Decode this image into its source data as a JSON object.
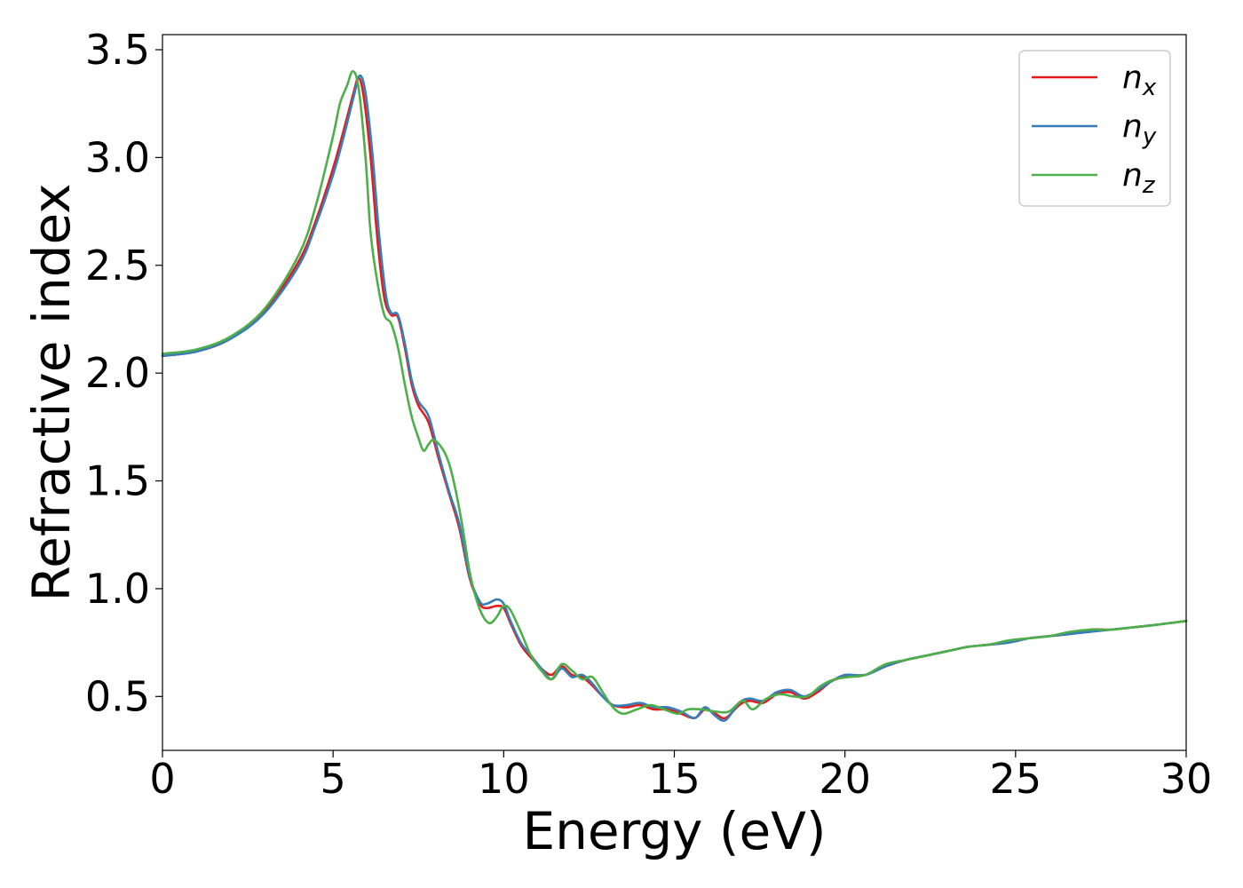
{
  "chart_data": {
    "type": "line",
    "title": "",
    "xlabel": "Energy (eV)",
    "ylabel": "Refractive index",
    "xlim": [
      0,
      30
    ],
    "ylim": [
      0.25,
      3.57
    ],
    "xticks": [
      0,
      5,
      10,
      15,
      20,
      25,
      30
    ],
    "xtick_labels": [
      "0",
      "5",
      "10",
      "15",
      "20",
      "25",
      "30"
    ],
    "yticks": [
      0.5,
      1.0,
      1.5,
      2.0,
      2.5,
      3.0,
      3.5
    ],
    "ytick_labels": [
      "0.5",
      "1.0",
      "1.5",
      "2.0",
      "2.5",
      "3.0",
      "3.5"
    ],
    "grid": false,
    "legend_position": "top-right",
    "series": [
      {
        "name": "n_x",
        "legend_base": "n",
        "legend_sub": "x",
        "color": "#e41a1c",
        "points": [
          [
            0,
            2.08
          ],
          [
            1,
            2.1
          ],
          [
            2,
            2.16
          ],
          [
            3,
            2.29
          ],
          [
            4,
            2.52
          ],
          [
            4.5,
            2.71
          ],
          [
            5,
            2.95
          ],
          [
            5.3,
            3.12
          ],
          [
            5.6,
            3.3
          ],
          [
            5.75,
            3.37
          ],
          [
            5.9,
            3.28
          ],
          [
            6.1,
            3.0
          ],
          [
            6.3,
            2.62
          ],
          [
            6.5,
            2.35
          ],
          [
            6.7,
            2.27
          ],
          [
            6.9,
            2.26
          ],
          [
            7.1,
            2.12
          ],
          [
            7.3,
            1.95
          ],
          [
            7.5,
            1.85
          ],
          [
            7.8,
            1.77
          ],
          [
            8.1,
            1.6
          ],
          [
            8.4,
            1.44
          ],
          [
            8.7,
            1.28
          ],
          [
            9.0,
            1.05
          ],
          [
            9.3,
            0.93
          ],
          [
            9.5,
            0.91
          ],
          [
            9.8,
            0.92
          ],
          [
            10.0,
            0.91
          ],
          [
            10.2,
            0.84
          ],
          [
            10.5,
            0.74
          ],
          [
            10.8,
            0.68
          ],
          [
            11.1,
            0.63
          ],
          [
            11.4,
            0.6
          ],
          [
            11.7,
            0.64
          ],
          [
            12.0,
            0.6
          ],
          [
            12.3,
            0.59
          ],
          [
            12.6,
            0.55
          ],
          [
            12.9,
            0.5
          ],
          [
            13.2,
            0.46
          ],
          [
            13.6,
            0.45
          ],
          [
            14.0,
            0.46
          ],
          [
            14.4,
            0.44
          ],
          [
            14.8,
            0.44
          ],
          [
            15.2,
            0.42
          ],
          [
            15.6,
            0.4
          ],
          [
            15.9,
            0.44
          ],
          [
            16.2,
            0.42
          ],
          [
            16.5,
            0.4
          ],
          [
            16.9,
            0.46
          ],
          [
            17.2,
            0.48
          ],
          [
            17.6,
            0.47
          ],
          [
            18.0,
            0.51
          ],
          [
            18.4,
            0.52
          ],
          [
            18.8,
            0.49
          ],
          [
            19.2,
            0.52
          ],
          [
            19.6,
            0.57
          ],
          [
            20.0,
            0.59
          ],
          [
            20.6,
            0.6
          ],
          [
            21.2,
            0.64
          ],
          [
            21.8,
            0.67
          ],
          [
            22.4,
            0.69
          ],
          [
            23.0,
            0.71
          ],
          [
            23.6,
            0.73
          ],
          [
            24.2,
            0.74
          ],
          [
            24.8,
            0.75
          ],
          [
            25.4,
            0.77
          ],
          [
            26.0,
            0.78
          ],
          [
            26.6,
            0.79
          ],
          [
            27.2,
            0.81
          ],
          [
            27.8,
            0.81
          ],
          [
            28.4,
            0.82
          ],
          [
            29.0,
            0.83
          ],
          [
            29.5,
            0.84
          ],
          [
            30,
            0.85
          ]
        ]
      },
      {
        "name": "n_y",
        "legend_base": "n",
        "legend_sub": "y",
        "color": "#377eb8",
        "points": [
          [
            0,
            2.08
          ],
          [
            1,
            2.1
          ],
          [
            2,
            2.16
          ],
          [
            3,
            2.28
          ],
          [
            4,
            2.5
          ],
          [
            4.5,
            2.69
          ],
          [
            5,
            2.92
          ],
          [
            5.3,
            3.09
          ],
          [
            5.6,
            3.28
          ],
          [
            5.78,
            3.38
          ],
          [
            5.95,
            3.3
          ],
          [
            6.15,
            3.02
          ],
          [
            6.35,
            2.64
          ],
          [
            6.55,
            2.36
          ],
          [
            6.7,
            2.28
          ],
          [
            6.9,
            2.27
          ],
          [
            7.1,
            2.14
          ],
          [
            7.3,
            1.97
          ],
          [
            7.5,
            1.87
          ],
          [
            7.8,
            1.8
          ],
          [
            8.1,
            1.62
          ],
          [
            8.4,
            1.45
          ],
          [
            8.7,
            1.3
          ],
          [
            9.0,
            1.06
          ],
          [
            9.3,
            0.94
          ],
          [
            9.5,
            0.93
          ],
          [
            9.8,
            0.95
          ],
          [
            10.0,
            0.93
          ],
          [
            10.2,
            0.85
          ],
          [
            10.5,
            0.75
          ],
          [
            10.8,
            0.69
          ],
          [
            11.1,
            0.63
          ],
          [
            11.4,
            0.58
          ],
          [
            11.7,
            0.63
          ],
          [
            12.0,
            0.59
          ],
          [
            12.3,
            0.6
          ],
          [
            12.6,
            0.56
          ],
          [
            12.9,
            0.5
          ],
          [
            13.2,
            0.46
          ],
          [
            13.6,
            0.46
          ],
          [
            14.0,
            0.47
          ],
          [
            14.4,
            0.45
          ],
          [
            14.8,
            0.45
          ],
          [
            15.2,
            0.43
          ],
          [
            15.6,
            0.4
          ],
          [
            15.9,
            0.45
          ],
          [
            16.2,
            0.41
          ],
          [
            16.5,
            0.39
          ],
          [
            16.9,
            0.47
          ],
          [
            17.2,
            0.49
          ],
          [
            17.6,
            0.48
          ],
          [
            18.0,
            0.52
          ],
          [
            18.4,
            0.53
          ],
          [
            18.8,
            0.5
          ],
          [
            19.2,
            0.53
          ],
          [
            19.6,
            0.57
          ],
          [
            20.0,
            0.6
          ],
          [
            20.6,
            0.6
          ],
          [
            21.2,
            0.64
          ],
          [
            21.8,
            0.67
          ],
          [
            22.4,
            0.69
          ],
          [
            23.0,
            0.71
          ],
          [
            23.6,
            0.73
          ],
          [
            24.2,
            0.74
          ],
          [
            24.8,
            0.75
          ],
          [
            25.4,
            0.77
          ],
          [
            26.0,
            0.78
          ],
          [
            26.6,
            0.79
          ],
          [
            27.2,
            0.8
          ],
          [
            27.8,
            0.81
          ],
          [
            28.4,
            0.82
          ],
          [
            29.0,
            0.83
          ],
          [
            29.5,
            0.84
          ],
          [
            30,
            0.85
          ]
        ]
      },
      {
        "name": "n_z",
        "legend_base": "n",
        "legend_sub": "z",
        "color": "#4daf4a",
        "points": [
          [
            0,
            2.09
          ],
          [
            1,
            2.11
          ],
          [
            2,
            2.17
          ],
          [
            3,
            2.3
          ],
          [
            4,
            2.55
          ],
          [
            4.5,
            2.78
          ],
          [
            5,
            3.1
          ],
          [
            5.2,
            3.25
          ],
          [
            5.4,
            3.33
          ],
          [
            5.58,
            3.4
          ],
          [
            5.75,
            3.32
          ],
          [
            5.95,
            3.0
          ],
          [
            6.1,
            2.65
          ],
          [
            6.3,
            2.42
          ],
          [
            6.5,
            2.27
          ],
          [
            6.7,
            2.23
          ],
          [
            6.9,
            2.12
          ],
          [
            7.1,
            1.95
          ],
          [
            7.3,
            1.8
          ],
          [
            7.5,
            1.7
          ],
          [
            7.65,
            1.64
          ],
          [
            7.8,
            1.67
          ],
          [
            7.95,
            1.69
          ],
          [
            8.2,
            1.65
          ],
          [
            8.4,
            1.58
          ],
          [
            8.6,
            1.45
          ],
          [
            8.8,
            1.28
          ],
          [
            9.0,
            1.08
          ],
          [
            9.2,
            0.95
          ],
          [
            9.4,
            0.87
          ],
          [
            9.6,
            0.84
          ],
          [
            9.8,
            0.87
          ],
          [
            10.0,
            0.92
          ],
          [
            10.2,
            0.9
          ],
          [
            10.5,
            0.8
          ],
          [
            10.8,
            0.69
          ],
          [
            11.1,
            0.62
          ],
          [
            11.4,
            0.58
          ],
          [
            11.7,
            0.65
          ],
          [
            12.0,
            0.62
          ],
          [
            12.3,
            0.58
          ],
          [
            12.6,
            0.59
          ],
          [
            12.9,
            0.52
          ],
          [
            13.2,
            0.45
          ],
          [
            13.5,
            0.42
          ],
          [
            13.9,
            0.44
          ],
          [
            14.3,
            0.46
          ],
          [
            14.7,
            0.44
          ],
          [
            15.1,
            0.42
          ],
          [
            15.4,
            0.44
          ],
          [
            15.8,
            0.44
          ],
          [
            16.2,
            0.43
          ],
          [
            16.6,
            0.43
          ],
          [
            17.0,
            0.48
          ],
          [
            17.3,
            0.44
          ],
          [
            17.7,
            0.49
          ],
          [
            18.1,
            0.51
          ],
          [
            18.5,
            0.5
          ],
          [
            18.9,
            0.5
          ],
          [
            19.3,
            0.55
          ],
          [
            19.7,
            0.58
          ],
          [
            20.1,
            0.59
          ],
          [
            20.6,
            0.6
          ],
          [
            21.2,
            0.65
          ],
          [
            21.8,
            0.67
          ],
          [
            22.4,
            0.69
          ],
          [
            23.0,
            0.71
          ],
          [
            23.6,
            0.73
          ],
          [
            24.2,
            0.74
          ],
          [
            24.8,
            0.76
          ],
          [
            25.4,
            0.77
          ],
          [
            26.0,
            0.78
          ],
          [
            26.6,
            0.8
          ],
          [
            27.2,
            0.81
          ],
          [
            27.8,
            0.81
          ],
          [
            28.4,
            0.82
          ],
          [
            29.0,
            0.83
          ],
          [
            29.5,
            0.84
          ],
          [
            30,
            0.85
          ]
        ]
      }
    ]
  }
}
